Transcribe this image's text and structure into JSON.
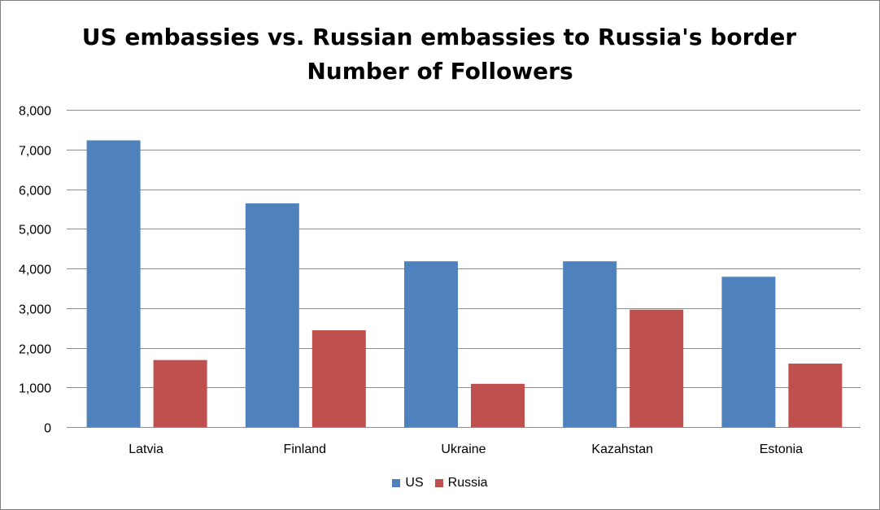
{
  "chart_data": {
    "type": "bar",
    "title_line1": "US embassies vs. Russian embassies to Russia's border",
    "title_line2": "Number of Followers",
    "categories": [
      "Latvia",
      "Finland",
      "Ukraine",
      "Kazahstan",
      "Estonia"
    ],
    "series": [
      {
        "name": "US",
        "color": "#4f81bd",
        "values": [
          7230,
          5640,
          4180,
          4180,
          3790
        ]
      },
      {
        "name": "Russia",
        "color": "#c0504d",
        "values": [
          1690,
          2440,
          1090,
          2960,
          1600
        ]
      }
    ],
    "ylim": [
      0,
      8000
    ],
    "yticks": [
      "0",
      "1,000",
      "2,000",
      "3,000",
      "4,000",
      "5,000",
      "6,000",
      "7,000",
      "8,000"
    ],
    "grid": true,
    "legend_position": "bottom"
  }
}
